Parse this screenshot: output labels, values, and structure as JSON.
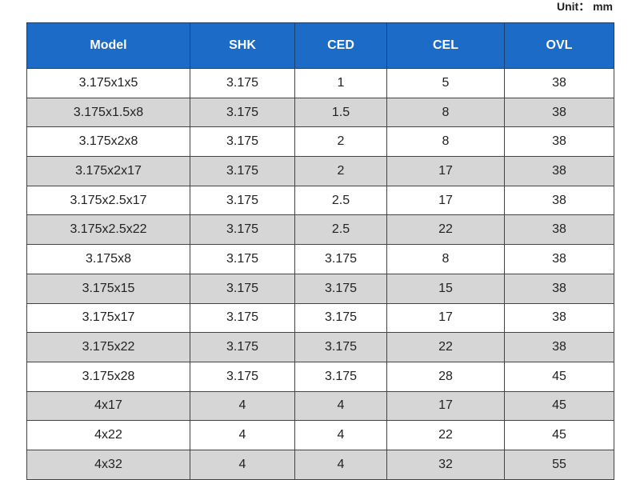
{
  "unit": "Unit： mm",
  "table": {
    "header": [
      "Model",
      "SHK",
      "CED",
      "CEL",
      "OVL"
    ],
    "rows": [
      [
        "3.175x1x5",
        "3.175",
        "1",
        "5",
        "38"
      ],
      [
        "3.175x1.5x8",
        "3.175",
        "1.5",
        "8",
        "38"
      ],
      [
        "3.175x2x8",
        "3.175",
        "2",
        "8",
        "38"
      ],
      [
        "3.175x2x17",
        "3.175",
        "2",
        "17",
        "38"
      ],
      [
        "3.175x2.5x17",
        "3.175",
        "2.5",
        "17",
        "38"
      ],
      [
        "3.175x2.5x22",
        "3.175",
        "2.5",
        "22",
        "38"
      ],
      [
        "3.175x8",
        "3.175",
        "3.175",
        "8",
        "38"
      ],
      [
        "3.175x15",
        "3.175",
        "3.175",
        "15",
        "38"
      ],
      [
        "3.175x17",
        "3.175",
        "3.175",
        "17",
        "38"
      ],
      [
        "3.175x22",
        "3.175",
        "3.175",
        "22",
        "38"
      ],
      [
        "3.175x28",
        "3.175",
        "3.175",
        "28",
        "45"
      ],
      [
        "4x17",
        "4",
        "4",
        "17",
        "45"
      ],
      [
        "4x22",
        "4",
        "4",
        "22",
        "45"
      ],
      [
        "4x32",
        "4",
        "4",
        "32",
        "55"
      ]
    ]
  }
}
